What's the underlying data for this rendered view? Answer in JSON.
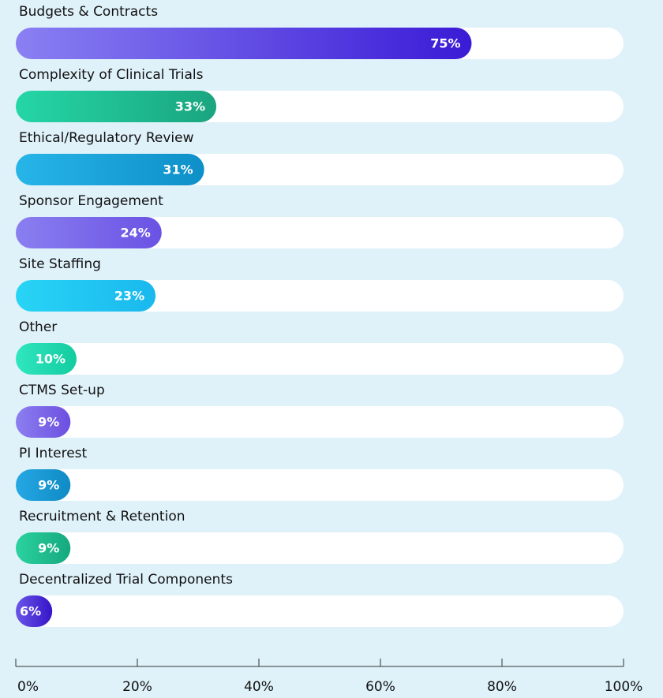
{
  "chart_data": {
    "type": "hbar",
    "categories": [
      "Budgets & Contracts",
      "Complexity of Clinical Trials",
      "Ethical/Regulatory Review",
      "Sponsor Engagement",
      "Site Staffing",
      "Other",
      "CTMS Set-up",
      "PI Interest",
      "Recruitment & Retention",
      "Decentralized Trial Components"
    ],
    "values": [
      75,
      33,
      31,
      24,
      23,
      10,
      9,
      9,
      9,
      6
    ],
    "value_labels": [
      "75%",
      "33%",
      "31%",
      "24%",
      "23%",
      "10%",
      "9%",
      "9%",
      "9%",
      "6%"
    ],
    "colors": [
      [
        "#8a80f2",
        "#3a1bd6"
      ],
      [
        "#25d6a6",
        "#1aa57f"
      ],
      [
        "#27b5e8",
        "#0e8fc8"
      ],
      [
        "#8a7ff0",
        "#6a52e4"
      ],
      [
        "#28d4f5",
        "#1ab8ee"
      ],
      [
        "#2fe6c0",
        "#14cca0"
      ],
      [
        "#8c7ff0",
        "#6c4fe0"
      ],
      [
        "#25a8e4",
        "#0f8ac4"
      ],
      [
        "#2bd29f",
        "#16a87f"
      ],
      [
        "#6a55e8",
        "#3515c8"
      ]
    ],
    "xlim": [
      0,
      100
    ],
    "xticks": [
      {
        "value": 0,
        "label": "0%"
      },
      {
        "value": 20,
        "label": "20%"
      },
      {
        "value": 40,
        "label": "40%"
      },
      {
        "value": 60,
        "label": "60%"
      },
      {
        "value": 80,
        "label": "80%"
      },
      {
        "value": 100,
        "label": "100%"
      }
    ]
  }
}
